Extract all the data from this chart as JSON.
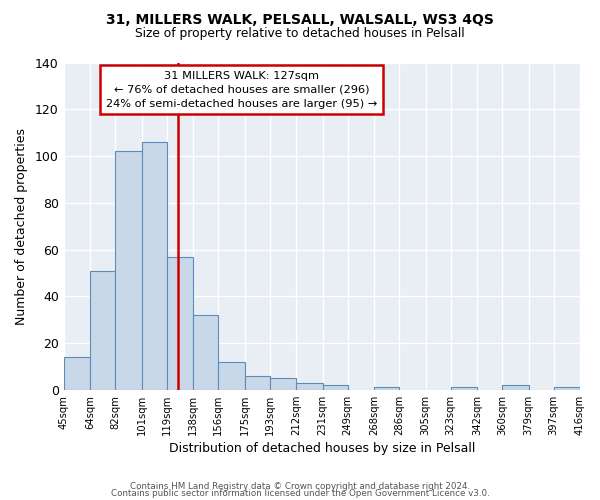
{
  "title1": "31, MILLERS WALK, PELSALL, WALSALL, WS3 4QS",
  "title2": "Size of property relative to detached houses in Pelsall",
  "xlabel": "Distribution of detached houses by size in Pelsall",
  "ylabel": "Number of detached properties",
  "bin_labels": [
    "45sqm",
    "64sqm",
    "82sqm",
    "101sqm",
    "119sqm",
    "138sqm",
    "156sqm",
    "175sqm",
    "193sqm",
    "212sqm",
    "231sqm",
    "249sqm",
    "268sqm",
    "286sqm",
    "305sqm",
    "323sqm",
    "342sqm",
    "360sqm",
    "379sqm",
    "397sqm",
    "416sqm"
  ],
  "bin_left": [
    45,
    64,
    82,
    101,
    119,
    138,
    156,
    175,
    193,
    212,
    231,
    249,
    268,
    286,
    305,
    323,
    342,
    360,
    379,
    397
  ],
  "bin_right": [
    64,
    82,
    101,
    119,
    138,
    156,
    175,
    193,
    212,
    231,
    249,
    268,
    286,
    305,
    323,
    342,
    360,
    379,
    397,
    416
  ],
  "bar_heights": [
    14,
    51,
    102,
    106,
    57,
    32,
    12,
    6,
    5,
    3,
    2,
    0,
    1,
    0,
    0,
    1,
    0,
    2,
    0,
    1
  ],
  "bar_color": "#c8d8e8",
  "bar_edge_color": "#5b8db8",
  "vline_x": 127,
  "vline_color": "#cc0000",
  "annotation_title": "31 MILLERS WALK: 127sqm",
  "annotation_line1": "← 76% of detached houses are smaller (296)",
  "annotation_line2": "24% of semi-detached houses are larger (95) →",
  "annotation_box_edgecolor": "#cc0000",
  "ylim": [
    0,
    140
  ],
  "yticks": [
    0,
    20,
    40,
    60,
    80,
    100,
    120,
    140
  ],
  "footer1": "Contains HM Land Registry data © Crown copyright and database right 2024.",
  "footer2": "Contains public sector information licensed under the Open Government Licence v3.0.",
  "bg_color": "#e8eef4",
  "grid_color": "#ffffff"
}
